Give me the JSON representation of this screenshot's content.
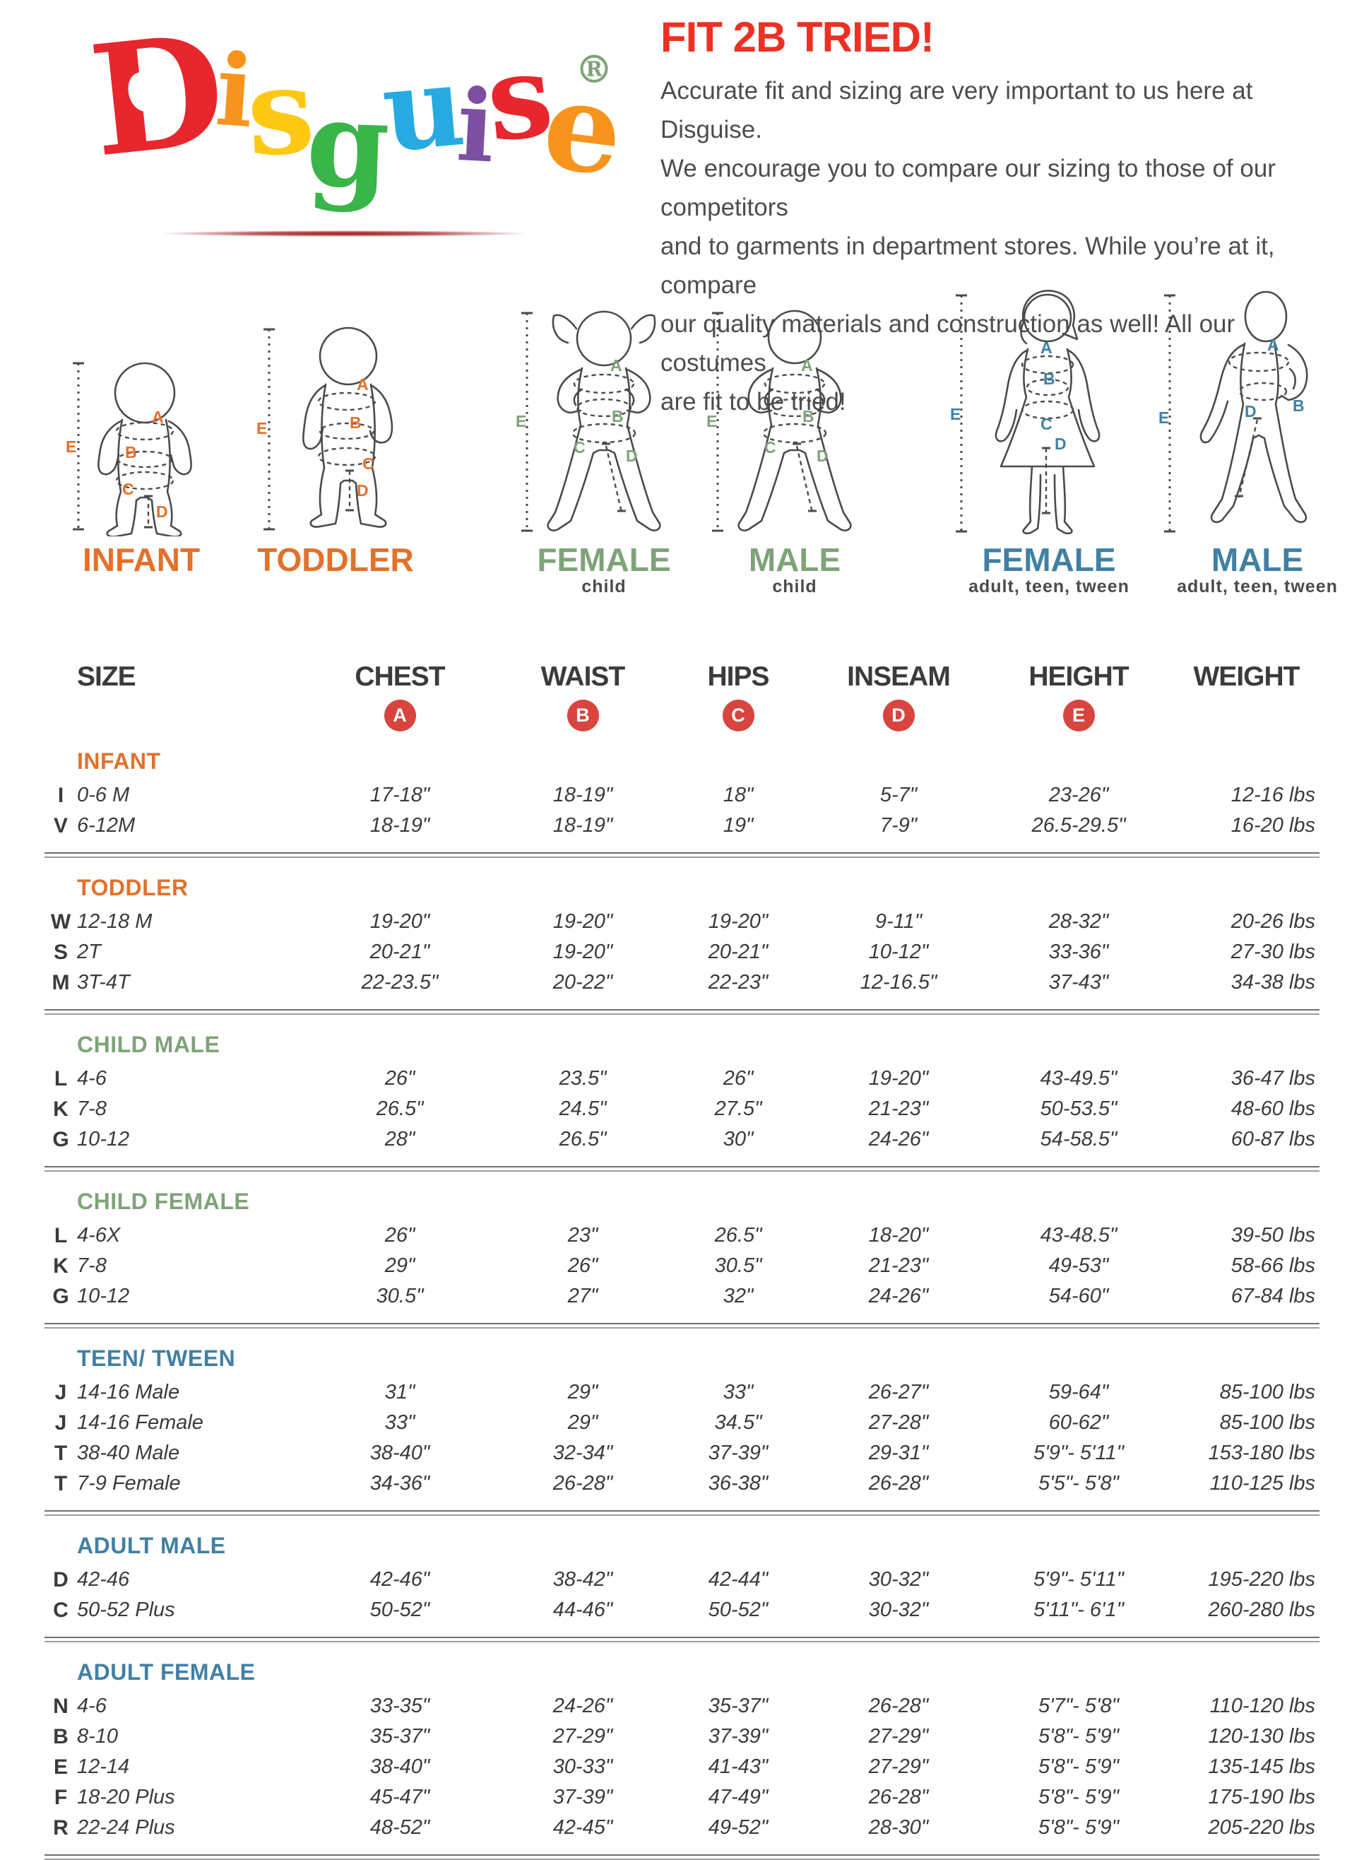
{
  "colors": {
    "title_red": "#ED3024",
    "badge_red": "#D8453E",
    "accent_orange": "#E2712B",
    "accent_green": "#7FA379",
    "accent_blue": "#4180A4",
    "swoosh_red": "#9E1B20",
    "text_gray": "#4C4D4F"
  },
  "logo": {
    "letters": [
      {
        "ch": "D",
        "color": "#E8262D"
      },
      {
        "ch": "i",
        "color": "#F7941D"
      },
      {
        "ch": "s",
        "color": "#FFC814"
      },
      {
        "ch": "g",
        "color": "#39B54A"
      },
      {
        "ch": "u",
        "color": "#27AAE1"
      },
      {
        "ch": "i",
        "color": "#7D4FA0"
      },
      {
        "ch": "s",
        "color": "#E8262D"
      },
      {
        "ch": "e",
        "color": "#F7941D"
      }
    ],
    "registered": "®"
  },
  "intro": {
    "title": "FIT 2B TRIED!",
    "body_lines": [
      "Accurate fit and sizing are very important to us here at Disguise.",
      "We encourage you to compare our sizing to those of our competitors",
      "and to garments in department stores. While you’re at it, compare",
      "our quality materials and construction as well! All our costumes",
      "are fit to be tried!"
    ]
  },
  "figures": [
    {
      "label": "INFANT",
      "sublabel": "",
      "color": "#E2712B",
      "letters": {
        "a": "A",
        "b": "B",
        "c": "C",
        "d": "D",
        "e": "E"
      }
    },
    {
      "label": "TODDLER",
      "sublabel": "",
      "color": "#E2712B",
      "letters": {
        "a": "A",
        "b": "B",
        "c": "C",
        "d": "D",
        "e": "E"
      }
    },
    {
      "label": "FEMALE",
      "sublabel": "child",
      "color": "#7FA379",
      "letters": {
        "a": "A",
        "b": "B",
        "c": "C",
        "d": "D",
        "e": "E"
      }
    },
    {
      "label": "MALE",
      "sublabel": "child",
      "color": "#7FA379",
      "letters": {
        "a": "A",
        "b": "B",
        "c": "C",
        "d": "D",
        "e": "E"
      }
    },
    {
      "label": "FEMALE",
      "sublabel": "adult, teen, tween",
      "color": "#4180A4",
      "letters": {
        "a": "A",
        "b": "B",
        "c": "C",
        "d": "D",
        "e": "E"
      }
    },
    {
      "label": "MALE",
      "sublabel": "adult, teen, tween",
      "color": "#4180A4",
      "letters": {
        "a": "A",
        "b": "B",
        "d": "D",
        "e": "E"
      }
    }
  ],
  "table": {
    "columns": [
      "SIZE",
      "CHEST",
      "WAIST",
      "HIPS",
      "INSEAM",
      "HEIGHT",
      "WEIGHT"
    ],
    "badges": [
      "A",
      "B",
      "C",
      "D",
      "E"
    ],
    "sections": [
      {
        "name": "INFANT",
        "theme": "accent_orange",
        "rows": [
          {
            "code": "I",
            "size": "0-6 M",
            "chest": "17-18\"",
            "waist": "18-19\"",
            "hips": "18\"",
            "inseam": "5-7\"",
            "height": "23-26\"",
            "weight": "12-16 lbs"
          },
          {
            "code": "V",
            "size": "6-12M",
            "chest": "18-19\"",
            "waist": "18-19\"",
            "hips": "19\"",
            "inseam": "7-9\"",
            "height": "26.5-29.5\"",
            "weight": "16-20 lbs"
          }
        ]
      },
      {
        "name": "TODDLER",
        "theme": "accent_orange",
        "rows": [
          {
            "code": "W",
            "size": "12-18 M",
            "chest": "19-20\"",
            "waist": "19-20\"",
            "hips": "19-20\"",
            "inseam": "9-11\"",
            "height": "28-32\"",
            "weight": "20-26 lbs"
          },
          {
            "code": "S",
            "size": "2T",
            "chest": "20-21\"",
            "waist": "19-20\"",
            "hips": "20-21\"",
            "inseam": "10-12\"",
            "height": "33-36\"",
            "weight": "27-30 lbs"
          },
          {
            "code": "M",
            "size": "3T-4T",
            "chest": "22-23.5\"",
            "waist": "20-22\"",
            "hips": "22-23\"",
            "inseam": "12-16.5\"",
            "height": "37-43\"",
            "weight": "34-38 lbs"
          }
        ]
      },
      {
        "name": "CHILD MALE",
        "theme": "accent_green",
        "rows": [
          {
            "code": "L",
            "size": "4-6",
            "chest": "26\"",
            "waist": "23.5\"",
            "hips": "26\"",
            "inseam": "19-20\"",
            "height": "43-49.5\"",
            "weight": "36-47 lbs"
          },
          {
            "code": "K",
            "size": "7-8",
            "chest": "26.5\"",
            "waist": "24.5\"",
            "hips": "27.5\"",
            "inseam": "21-23\"",
            "height": "50-53.5\"",
            "weight": "48-60 lbs"
          },
          {
            "code": "G",
            "size": "10-12",
            "chest": "28\"",
            "waist": "26.5\"",
            "hips": "30\"",
            "inseam": "24-26\"",
            "height": "54-58.5\"",
            "weight": "60-87 lbs"
          }
        ]
      },
      {
        "name": "CHILD FEMALE",
        "theme": "accent_green",
        "rows": [
          {
            "code": "L",
            "size": "4-6X",
            "chest": "26\"",
            "waist": "23\"",
            "hips": "26.5\"",
            "inseam": "18-20\"",
            "height": "43-48.5\"",
            "weight": "39-50 lbs"
          },
          {
            "code": "K",
            "size": "7-8",
            "chest": "29\"",
            "waist": "26\"",
            "hips": "30.5\"",
            "inseam": "21-23\"",
            "height": "49-53\"",
            "weight": "58-66 lbs"
          },
          {
            "code": "G",
            "size": "10-12",
            "chest": "30.5\"",
            "waist": "27\"",
            "hips": "32\"",
            "inseam": "24-26\"",
            "height": "54-60\"",
            "weight": "67-84 lbs"
          }
        ]
      },
      {
        "name": "TEEN/ TWEEN",
        "theme": "accent_blue",
        "rows": [
          {
            "code": "J",
            "size": "14-16 Male",
            "chest": "31\"",
            "waist": "29\"",
            "hips": "33\"",
            "inseam": "26-27\"",
            "height": "59-64\"",
            "weight": "85-100 lbs"
          },
          {
            "code": "J",
            "size": "14-16 Female",
            "chest": "33\"",
            "waist": "29\"",
            "hips": "34.5\"",
            "inseam": "27-28\"",
            "height": "60-62\"",
            "weight": "85-100 lbs"
          },
          {
            "code": "T",
            "size": "38-40 Male",
            "chest": "38-40\"",
            "waist": "32-34\"",
            "hips": "37-39\"",
            "inseam": "29-31\"",
            "height": "5'9\"- 5'11\"",
            "weight": "153-180 lbs"
          },
          {
            "code": "T",
            "size": "7-9 Female",
            "chest": "34-36\"",
            "waist": "26-28\"",
            "hips": "36-38\"",
            "inseam": "26-28\"",
            "height": "5'5\"- 5'8\"",
            "weight": "110-125 lbs"
          }
        ]
      },
      {
        "name": "ADULT MALE",
        "theme": "accent_blue",
        "rows": [
          {
            "code": "D",
            "size": "42-46",
            "chest": "42-46\"",
            "waist": "38-42\"",
            "hips": "42-44\"",
            "inseam": "30-32\"",
            "height": "5'9\"- 5'11\"",
            "weight": "195-220 lbs"
          },
          {
            "code": "C",
            "size": "50-52 Plus",
            "chest": "50-52\"",
            "waist": "44-46\"",
            "hips": "50-52\"",
            "inseam": "30-32\"",
            "height": "5'11\"- 6'1\"",
            "weight": "260-280 lbs"
          }
        ]
      },
      {
        "name": "ADULT FEMALE",
        "theme": "accent_blue",
        "rows": [
          {
            "code": "N",
            "size": "4-6",
            "chest": "33-35\"",
            "waist": "24-26\"",
            "hips": "35-37\"",
            "inseam": "26-28\"",
            "height": "5'7\"- 5'8\"",
            "weight": "110-120 lbs"
          },
          {
            "code": "B",
            "size": "8-10",
            "chest": "35-37\"",
            "waist": "27-29\"",
            "hips": "37-39\"",
            "inseam": "27-29\"",
            "height": "5'8\"- 5'9\"",
            "weight": "120-130 lbs"
          },
          {
            "code": "E",
            "size": "12-14",
            "chest": "38-40\"",
            "waist": "30-33\"",
            "hips": "41-43\"",
            "inseam": "27-29\"",
            "height": "5'8\"- 5'9\"",
            "weight": "135-145 lbs"
          },
          {
            "code": "F",
            "size": "18-20 Plus",
            "chest": "45-47\"",
            "waist": "37-39\"",
            "hips": "47-49\"",
            "inseam": "26-28\"",
            "height": "5'8\"- 5'9\"",
            "weight": "175-190 lbs"
          },
          {
            "code": "R",
            "size": "22-24 Plus",
            "chest": "48-52\"",
            "waist": "42-45\"",
            "hips": "49-52\"",
            "inseam": "28-30\"",
            "height": "5'8\"- 5'9\"",
            "weight": "205-220 lbs"
          }
        ]
      }
    ]
  }
}
